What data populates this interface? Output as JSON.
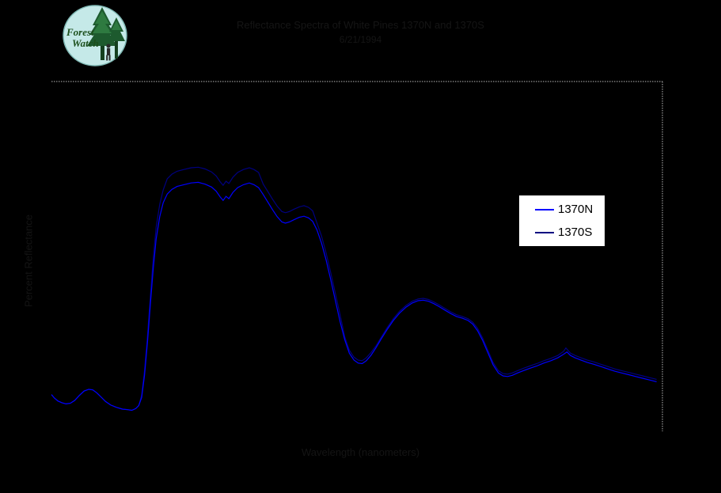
{
  "logo": {
    "line1": "Forest",
    "line2": "Watch"
  },
  "title": {
    "line1": "Reflectance Spectra of White Pines 1370N and 1370S",
    "line2": "6/21/1994",
    "legibility": "title text is rendered near-black on black and is not legible in the screenshot"
  },
  "axes": {
    "x_label": "Wavelength (nanometers)",
    "y_label": "Percent Reflectance",
    "tick_labels_visible": false
  },
  "legend": {
    "items": [
      {
        "label": "1370N",
        "color": "#0000ff"
      },
      {
        "label": "1370S",
        "color": "#000080"
      }
    ]
  },
  "colors": {
    "background": "#000000",
    "plot_frame": "#b8b8b8",
    "legend_background": "#ffffff",
    "legend_border": "#000000",
    "logo_circle": "#c5e9e8",
    "logo_green": "#1d5a2e"
  },
  "chart_data": {
    "type": "line",
    "title": "Reflectance Spectra of White Pines 1370N and 1370S",
    "xlabel": "Wavelength (nanometers)",
    "ylabel": "Percent Reflectance",
    "xlim": [
      400,
      2500
    ],
    "ylim": [
      0,
      60
    ],
    "grid": false,
    "legend_position": "right-center",
    "series": [
      {
        "name": "1370N",
        "color": "#0000ff",
        "points": [
          [
            400,
            6.3
          ],
          [
            410,
            5.7
          ],
          [
            422,
            5.2
          ],
          [
            436,
            4.9
          ],
          [
            450,
            4.7
          ],
          [
            465,
            4.8
          ],
          [
            480,
            5.3
          ],
          [
            495,
            6.1
          ],
          [
            512,
            6.9
          ],
          [
            528,
            7.2
          ],
          [
            542,
            7.1
          ],
          [
            556,
            6.6
          ],
          [
            570,
            5.9
          ],
          [
            586,
            5.1
          ],
          [
            604,
            4.5
          ],
          [
            624,
            4.1
          ],
          [
            644,
            3.8
          ],
          [
            662,
            3.7
          ],
          [
            676,
            3.6
          ],
          [
            690,
            3.9
          ],
          [
            700,
            4.4
          ],
          [
            710,
            5.8
          ],
          [
            720,
            9.6
          ],
          [
            730,
            15.2
          ],
          [
            740,
            21.8
          ],
          [
            750,
            28.0
          ],
          [
            760,
            33.0
          ],
          [
            772,
            36.8
          ],
          [
            784,
            39.2
          ],
          [
            798,
            40.7
          ],
          [
            814,
            41.5
          ],
          [
            832,
            42.0
          ],
          [
            855,
            42.3
          ],
          [
            880,
            42.6
          ],
          [
            905,
            42.7
          ],
          [
            928,
            42.4
          ],
          [
            950,
            41.9
          ],
          [
            966,
            41.2
          ],
          [
            980,
            40.2
          ],
          [
            990,
            39.6
          ],
          [
            1000,
            40.3
          ],
          [
            1010,
            39.9
          ],
          [
            1024,
            41.0
          ],
          [
            1040,
            41.8
          ],
          [
            1060,
            42.3
          ],
          [
            1080,
            42.6
          ],
          [
            1096,
            42.3
          ],
          [
            1112,
            41.8
          ],
          [
            1128,
            40.6
          ],
          [
            1144,
            39.3
          ],
          [
            1160,
            38.0
          ],
          [
            1176,
            36.8
          ],
          [
            1192,
            35.9
          ],
          [
            1204,
            35.7
          ],
          [
            1218,
            35.9
          ],
          [
            1234,
            36.3
          ],
          [
            1252,
            36.7
          ],
          [
            1268,
            36.9
          ],
          [
            1284,
            36.6
          ],
          [
            1298,
            36.0
          ],
          [
            1312,
            34.6
          ],
          [
            1328,
            32.3
          ],
          [
            1344,
            29.4
          ],
          [
            1360,
            26.0
          ],
          [
            1376,
            22.4
          ],
          [
            1392,
            18.8
          ],
          [
            1408,
            15.7
          ],
          [
            1424,
            13.4
          ],
          [
            1440,
            12.2
          ],
          [
            1454,
            11.7
          ],
          [
            1468,
            11.6
          ],
          [
            1482,
            12.1
          ],
          [
            1498,
            13.0
          ],
          [
            1515,
            14.3
          ],
          [
            1533,
            15.8
          ],
          [
            1553,
            17.4
          ],
          [
            1575,
            19.0
          ],
          [
            1597,
            20.3
          ],
          [
            1619,
            21.3
          ],
          [
            1640,
            22.0
          ],
          [
            1660,
            22.4
          ],
          [
            1678,
            22.5
          ],
          [
            1696,
            22.3
          ],
          [
            1714,
            21.9
          ],
          [
            1732,
            21.4
          ],
          [
            1752,
            20.8
          ],
          [
            1772,
            20.2
          ],
          [
            1792,
            19.7
          ],
          [
            1812,
            19.4
          ],
          [
            1832,
            19.0
          ],
          [
            1848,
            18.4
          ],
          [
            1864,
            17.3
          ],
          [
            1882,
            15.6
          ],
          [
            1900,
            13.5
          ],
          [
            1918,
            11.4
          ],
          [
            1936,
            10.0
          ],
          [
            1952,
            9.5
          ],
          [
            1968,
            9.4
          ],
          [
            1984,
            9.6
          ],
          [
            2002,
            10.0
          ],
          [
            2022,
            10.4
          ],
          [
            2044,
            10.8
          ],
          [
            2068,
            11.2
          ],
          [
            2092,
            11.7
          ],
          [
            2116,
            12.1
          ],
          [
            2140,
            12.6
          ],
          [
            2160,
            13.2
          ],
          [
            2172,
            13.6
          ],
          [
            2184,
            13.0
          ],
          [
            2200,
            12.6
          ],
          [
            2220,
            12.2
          ],
          [
            2242,
            11.8
          ],
          [
            2264,
            11.5
          ],
          [
            2288,
            11.1
          ],
          [
            2312,
            10.7
          ],
          [
            2336,
            10.3
          ],
          [
            2360,
            10.0
          ],
          [
            2384,
            9.7
          ],
          [
            2408,
            9.4
          ],
          [
            2432,
            9.1
          ],
          [
            2456,
            8.8
          ],
          [
            2480,
            8.5
          ]
        ]
      },
      {
        "name": "1370S",
        "color": "#000080",
        "points": [
          [
            400,
            6.3
          ],
          [
            410,
            5.7
          ],
          [
            422,
            5.2
          ],
          [
            436,
            4.9
          ],
          [
            450,
            4.7
          ],
          [
            465,
            4.8
          ],
          [
            480,
            5.3
          ],
          [
            495,
            6.1
          ],
          [
            512,
            6.9
          ],
          [
            528,
            7.2
          ],
          [
            542,
            7.1
          ],
          [
            556,
            6.6
          ],
          [
            570,
            5.9
          ],
          [
            586,
            5.1
          ],
          [
            604,
            4.5
          ],
          [
            624,
            4.1
          ],
          [
            644,
            3.8
          ],
          [
            662,
            3.7
          ],
          [
            676,
            3.6
          ],
          [
            690,
            3.9
          ],
          [
            700,
            4.4
          ],
          [
            710,
            6.2
          ],
          [
            720,
            10.4
          ],
          [
            730,
            16.3
          ],
          [
            740,
            23.2
          ],
          [
            750,
            29.8
          ],
          [
            760,
            35.0
          ],
          [
            772,
            38.9
          ],
          [
            784,
            41.4
          ],
          [
            798,
            43.3
          ],
          [
            814,
            44.1
          ],
          [
            832,
            44.6
          ],
          [
            855,
            44.9
          ],
          [
            880,
            45.2
          ],
          [
            905,
            45.3
          ],
          [
            928,
            45.0
          ],
          [
            950,
            44.5
          ],
          [
            966,
            43.8
          ],
          [
            980,
            42.8
          ],
          [
            990,
            42.2
          ],
          [
            1000,
            42.9
          ],
          [
            1010,
            42.5
          ],
          [
            1024,
            43.6
          ],
          [
            1040,
            44.4
          ],
          [
            1060,
            44.9
          ],
          [
            1080,
            45.2
          ],
          [
            1096,
            44.9
          ],
          [
            1112,
            44.4
          ],
          [
            1128,
            42.4
          ],
          [
            1144,
            41.1
          ],
          [
            1160,
            39.8
          ],
          [
            1176,
            38.6
          ],
          [
            1192,
            37.7
          ],
          [
            1204,
            37.5
          ],
          [
            1218,
            37.7
          ],
          [
            1234,
            38.1
          ],
          [
            1252,
            38.5
          ],
          [
            1268,
            38.7
          ],
          [
            1284,
            38.4
          ],
          [
            1298,
            37.8
          ],
          [
            1312,
            35.8
          ],
          [
            1328,
            33.5
          ],
          [
            1344,
            30.6
          ],
          [
            1360,
            27.2
          ],
          [
            1376,
            23.6
          ],
          [
            1392,
            20.0
          ],
          [
            1408,
            16.2
          ],
          [
            1424,
            13.9
          ],
          [
            1440,
            12.7
          ],
          [
            1454,
            12.2
          ],
          [
            1468,
            12.1
          ],
          [
            1482,
            12.6
          ],
          [
            1498,
            13.5
          ],
          [
            1515,
            14.6
          ],
          [
            1533,
            16.1
          ],
          [
            1553,
            17.7
          ],
          [
            1575,
            19.3
          ],
          [
            1597,
            20.6
          ],
          [
            1619,
            21.6
          ],
          [
            1640,
            22.3
          ],
          [
            1660,
            22.7
          ],
          [
            1678,
            22.8
          ],
          [
            1696,
            22.6
          ],
          [
            1714,
            22.2
          ],
          [
            1732,
            21.7
          ],
          [
            1752,
            21.1
          ],
          [
            1772,
            20.5
          ],
          [
            1792,
            20.0
          ],
          [
            1812,
            19.7
          ],
          [
            1832,
            19.3
          ],
          [
            1848,
            18.7
          ],
          [
            1864,
            17.7
          ],
          [
            1882,
            16.0
          ],
          [
            1900,
            13.9
          ],
          [
            1918,
            11.8
          ],
          [
            1936,
            10.4
          ],
          [
            1952,
            9.9
          ],
          [
            1968,
            9.8
          ],
          [
            1984,
            10.0
          ],
          [
            2002,
            10.4
          ],
          [
            2022,
            10.8
          ],
          [
            2044,
            11.2
          ],
          [
            2068,
            11.6
          ],
          [
            2092,
            12.1
          ],
          [
            2116,
            12.5
          ],
          [
            2140,
            13.0
          ],
          [
            2160,
            13.7
          ],
          [
            2168,
            14.3
          ],
          [
            2184,
            13.4
          ],
          [
            2200,
            13.0
          ],
          [
            2220,
            12.6
          ],
          [
            2242,
            12.2
          ],
          [
            2264,
            11.9
          ],
          [
            2288,
            11.5
          ],
          [
            2312,
            11.1
          ],
          [
            2336,
            10.7
          ],
          [
            2360,
            10.4
          ],
          [
            2384,
            10.1
          ],
          [
            2408,
            9.8
          ],
          [
            2432,
            9.5
          ],
          [
            2456,
            9.2
          ],
          [
            2480,
            8.9
          ]
        ]
      }
    ]
  }
}
